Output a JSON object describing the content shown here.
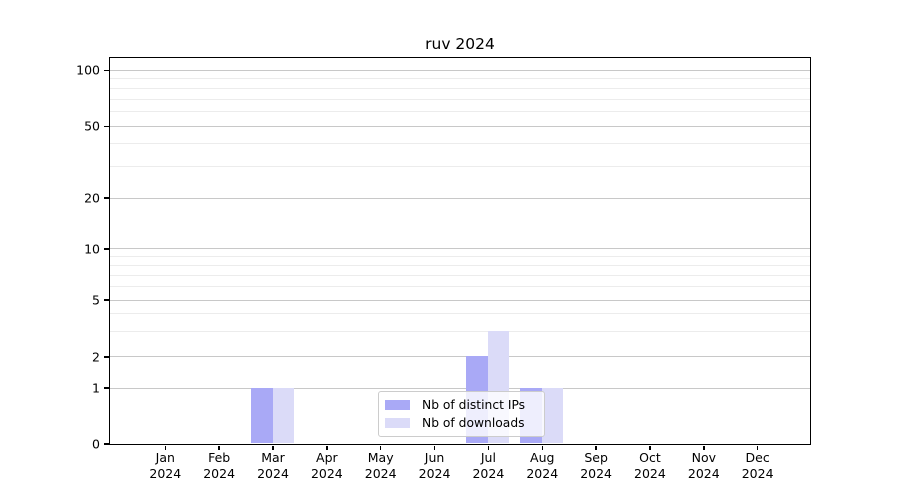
{
  "chart_data": {
    "type": "bar",
    "title": "ruv 2024",
    "categories": [
      "Jan",
      "Feb",
      "Mar",
      "Apr",
      "May",
      "Jun",
      "Jul",
      "Aug",
      "Sep",
      "Oct",
      "Nov",
      "Dec"
    ],
    "category_year_label": "2024",
    "series": [
      {
        "name": "Nb of distinct IPs",
        "color": "#a9a9f6",
        "values": [
          0,
          0,
          1,
          0,
          0,
          0,
          2,
          1,
          0,
          0,
          0,
          0
        ]
      },
      {
        "name": "Nb of downloads",
        "color": "#dbdbf8",
        "values": [
          0,
          0,
          1,
          0,
          0,
          0,
          3,
          1,
          0,
          0,
          0,
          0
        ]
      }
    ],
    "y_axis": {
      "scale": "log-like with linear segment below 1",
      "range": [
        0,
        100
      ],
      "ticks": [
        {
          "value": 100,
          "frac": 0.0323
        },
        {
          "value": 50,
          "frac": 0.1772
        },
        {
          "value": 20,
          "frac": 0.3627
        },
        {
          "value": 10,
          "frac": 0.4947
        },
        {
          "value": 5,
          "frac": 0.6274
        },
        {
          "value": 2,
          "frac": 0.7741
        },
        {
          "value": 1,
          "frac": 0.8551
        },
        {
          "value": 0,
          "frac": 1.0
        }
      ],
      "minor_values": [
        90,
        80,
        70,
        60,
        40,
        30,
        9,
        8,
        7,
        6,
        4,
        3
      ]
    },
    "grid": {
      "major_color": "#c8c8c8",
      "minor_color": "#ececec",
      "visible": true
    },
    "legend": {
      "position": "lower center (inside plot)",
      "entries": [
        "Nb of distinct IPs",
        "Nb of downloads"
      ]
    }
  }
}
